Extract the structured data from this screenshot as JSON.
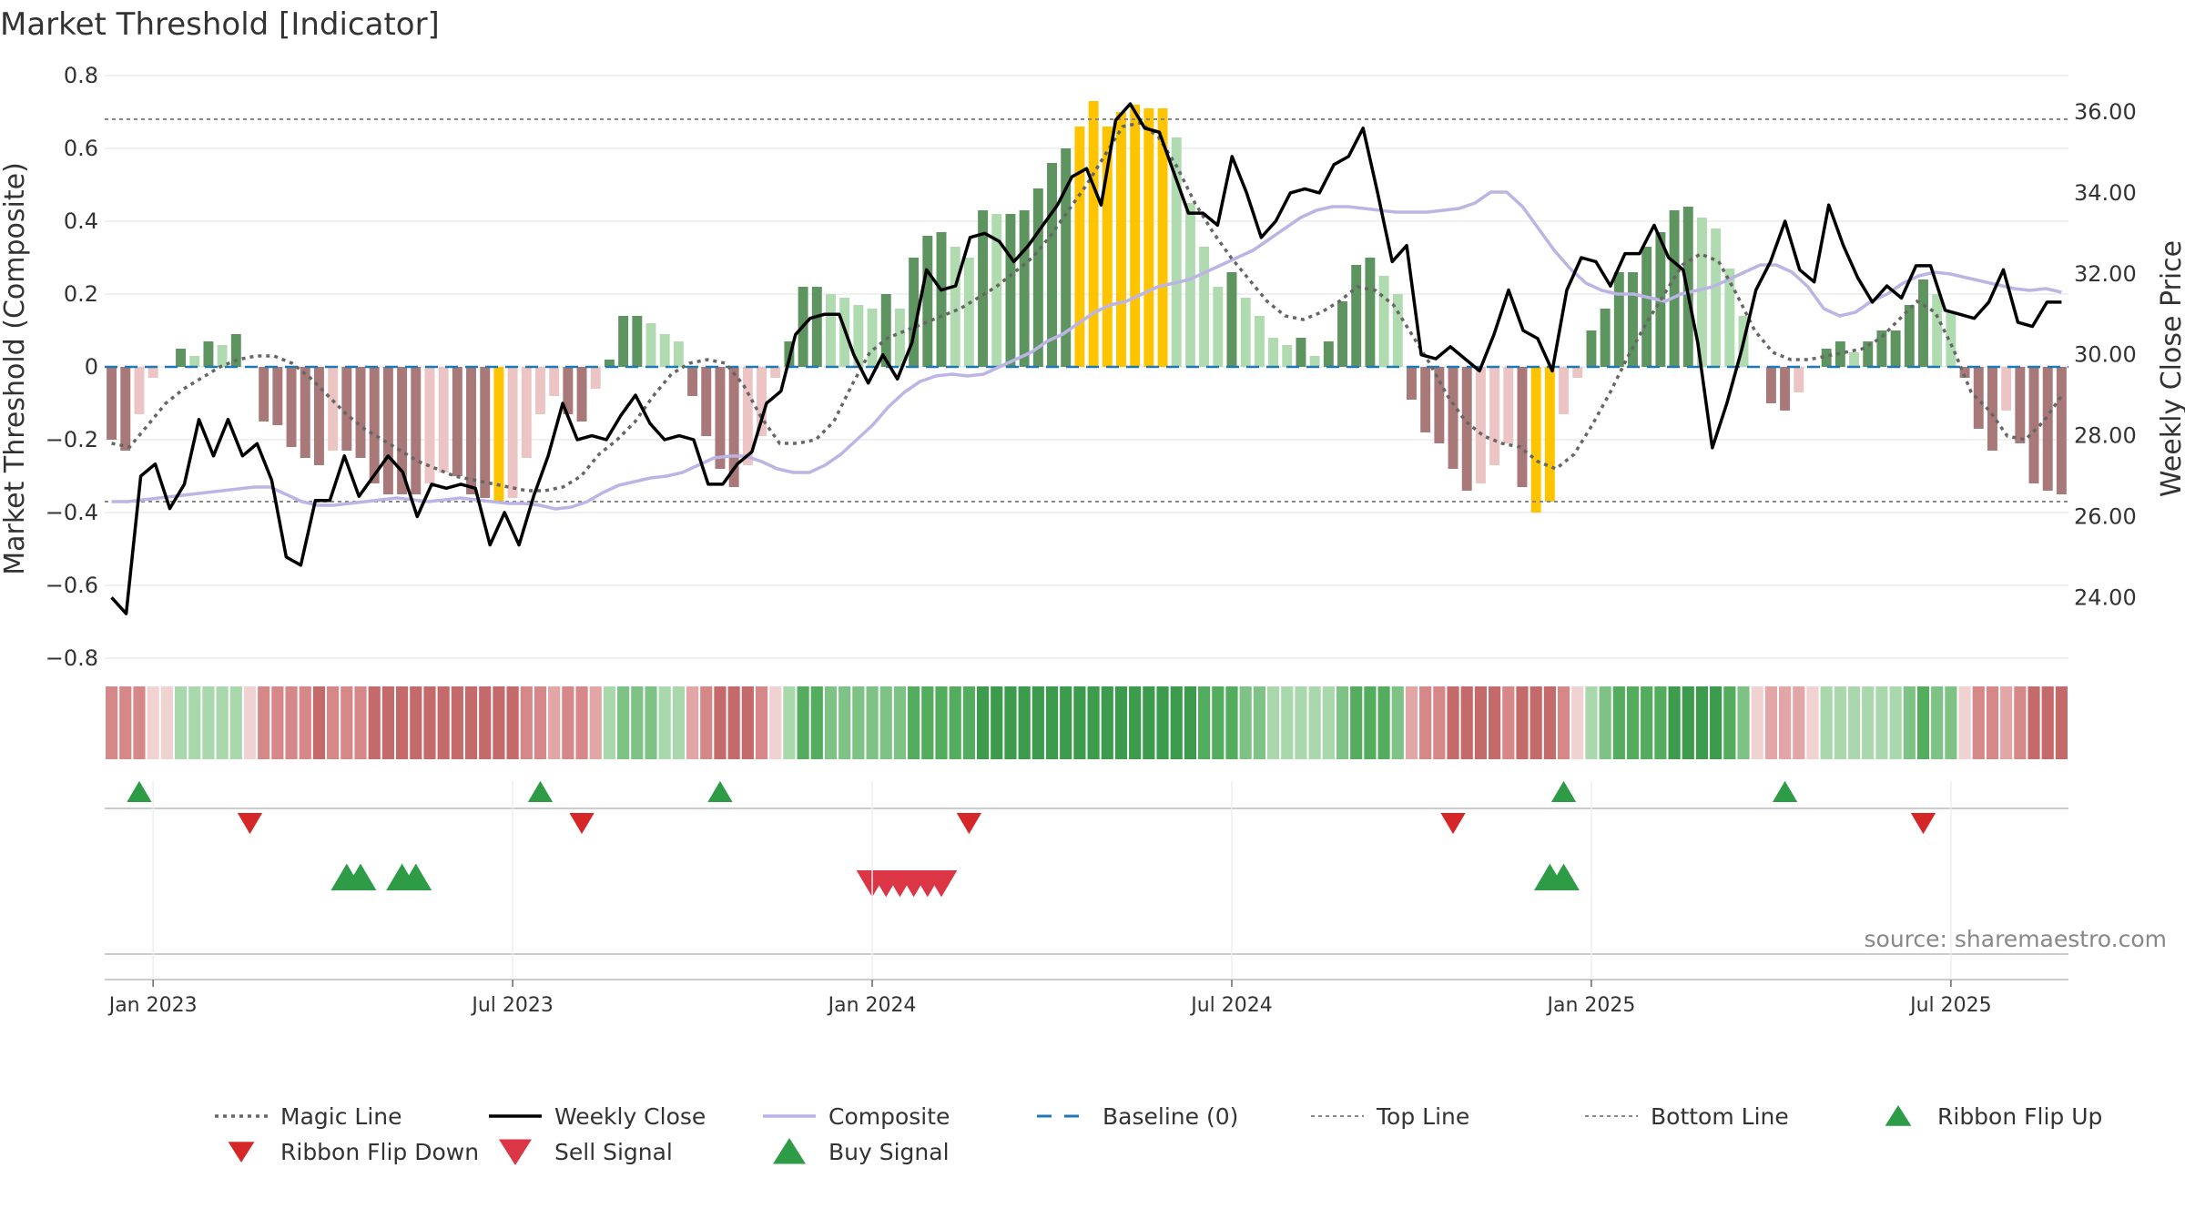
{
  "chart_data": {
    "type": "bar",
    "title": "Market Threshold [Indicator]",
    "source": "source: sharemaestro.com",
    "y_left": {
      "label": "Market Threshold (Composite)",
      "range": [
        -0.8,
        0.8
      ],
      "ticks": [
        {
          "v": 0.8,
          "label": "0.8"
        },
        {
          "v": 0.6,
          "label": "0.6"
        },
        {
          "v": 0.4,
          "label": "0.4"
        },
        {
          "v": 0.2,
          "label": "0.2"
        },
        {
          "v": 0,
          "label": "0"
        },
        {
          "v": -0.2,
          "label": "−0.2"
        },
        {
          "v": -0.4,
          "label": "−0.4"
        },
        {
          "v": -0.6,
          "label": "−0.6"
        },
        {
          "v": -0.8,
          "label": "−0.8"
        }
      ]
    },
    "y_right": {
      "label": "Weekly Close Price",
      "range": [
        22.5,
        36.9
      ],
      "ticks": [
        {
          "v": 36,
          "label": "36.00"
        },
        {
          "v": 34,
          "label": "34.00"
        },
        {
          "v": 32,
          "label": "32.00"
        },
        {
          "v": 30,
          "label": "30.00"
        },
        {
          "v": 28,
          "label": "28.00"
        },
        {
          "v": 26,
          "label": "26.00"
        },
        {
          "v": 24,
          "label": "24.00"
        }
      ]
    },
    "x_ticks": [
      {
        "w": 3,
        "label": "Jan 2023"
      },
      {
        "w": 29,
        "label": "Jul 2023"
      },
      {
        "w": 55,
        "label": "Jan 2024"
      },
      {
        "w": 81,
        "label": "Jul 2024"
      },
      {
        "w": 107,
        "label": "Jan 2025"
      },
      {
        "w": 133,
        "label": "Jul 2025"
      }
    ],
    "top_line": 0.68,
    "bottom_line": -0.37,
    "baseline": 0,
    "composite": [
      -0.37,
      -0.37,
      -0.365,
      -0.36,
      -0.355,
      -0.35,
      -0.345,
      -0.34,
      -0.335,
      -0.33,
      -0.33,
      -0.35,
      -0.37,
      -0.38,
      -0.38,
      -0.375,
      -0.37,
      -0.365,
      -0.36,
      -0.365,
      -0.37,
      -0.365,
      -0.36,
      -0.365,
      -0.37,
      -0.375,
      -0.375,
      -0.38,
      -0.39,
      -0.385,
      -0.37,
      -0.345,
      -0.325,
      -0.315,
      -0.305,
      -0.3,
      -0.29,
      -0.27,
      -0.25,
      -0.245,
      -0.245,
      -0.26,
      -0.28,
      -0.29,
      -0.29,
      -0.27,
      -0.24,
      -0.2,
      -0.16,
      -0.11,
      -0.07,
      -0.04,
      -0.025,
      -0.02,
      -0.025,
      -0.02,
      0.0,
      0.02,
      0.04,
      0.07,
      0.09,
      0.12,
      0.15,
      0.17,
      0.18,
      0.2,
      0.22,
      0.23,
      0.24,
      0.26,
      0.28,
      0.3,
      0.32,
      0.35,
      0.38,
      0.41,
      0.43,
      0.44,
      0.44,
      0.435,
      0.43,
      0.425,
      0.425,
      0.425,
      0.43,
      0.435,
      0.45,
      0.48,
      0.48,
      0.44,
      0.38,
      0.32,
      0.27,
      0.23,
      0.21,
      0.2,
      0.2,
      0.19,
      0.18,
      0.2,
      0.21,
      0.22,
      0.24,
      0.26,
      0.28,
      0.28,
      0.26,
      0.22,
      0.16,
      0.14,
      0.15,
      0.18,
      0.2,
      0.23,
      0.25,
      0.26,
      0.255,
      0.245,
      0.235,
      0.225,
      0.215,
      0.21,
      0.215,
      0.205
    ],
    "magic": [
      -0.21,
      -0.22,
      -0.16,
      -0.1,
      -0.06,
      -0.03,
      0.0,
      0.02,
      0.03,
      0.03,
      0.01,
      -0.03,
      -0.08,
      -0.13,
      -0.17,
      -0.2,
      -0.23,
      -0.26,
      -0.28,
      -0.3,
      -0.31,
      -0.32,
      -0.33,
      -0.34,
      -0.34,
      -0.33,
      -0.3,
      -0.24,
      -0.2,
      -0.15,
      -0.08,
      -0.02,
      0.01,
      0.02,
      0.01,
      -0.05,
      -0.14,
      -0.21,
      -0.21,
      -0.2,
      -0.15,
      -0.05,
      0.04,
      0.08,
      0.1,
      0.12,
      0.14,
      0.16,
      0.19,
      0.22,
      0.26,
      0.3,
      0.36,
      0.43,
      0.5,
      0.58,
      0.66,
      0.67,
      0.63,
      0.55,
      0.45,
      0.37,
      0.3,
      0.24,
      0.18,
      0.14,
      0.13,
      0.15,
      0.18,
      0.22,
      0.21,
      0.17,
      0.09,
      0.01,
      -0.08,
      -0.15,
      -0.19,
      -0.21,
      -0.22,
      -0.26,
      -0.28,
      -0.24,
      -0.16,
      -0.07,
      0.03,
      0.12,
      0.2,
      0.28,
      0.31,
      0.29,
      0.2,
      0.1,
      0.04,
      0.02,
      0.02,
      0.03,
      0.04,
      0.05,
      0.08,
      0.13,
      0.18,
      0.15,
      0.05,
      -0.07,
      -0.12,
      -0.19,
      -0.2,
      -0.15,
      -0.08
    ],
    "magic_start_week": 0,
    "weekly_close": [
      24.0,
      23.6,
      27.0,
      27.3,
      26.2,
      26.8,
      28.4,
      27.5,
      28.4,
      27.5,
      27.8,
      26.9,
      25.0,
      24.8,
      26.4,
      26.4,
      27.5,
      26.5,
      27.0,
      27.5,
      27.1,
      26.0,
      26.8,
      26.7,
      26.8,
      26.7,
      25.3,
      26.1,
      25.3,
      26.5,
      27.5,
      28.8,
      27.9,
      28.0,
      27.9,
      28.5,
      29.0,
      28.3,
      27.9,
      28.0,
      27.9,
      26.8,
      26.8,
      27.3,
      27.6,
      28.8,
      29.1,
      30.5,
      30.9,
      31.0,
      31.0,
      30.0,
      29.3,
      30.0,
      29.4,
      30.3,
      32.1,
      31.6,
      31.7,
      32.9,
      33.0,
      32.8,
      32.3,
      32.7,
      33.2,
      33.7,
      34.4,
      34.6,
      33.7,
      35.8,
      36.2,
      35.6,
      35.5,
      34.5,
      33.5,
      33.5,
      33.2,
      34.9,
      34.0,
      32.9,
      33.3,
      34.0,
      34.1,
      34.0,
      34.7,
      34.9,
      35.6,
      34.0,
      32.3,
      32.7,
      30.0,
      29.9,
      30.2,
      29.9,
      29.6,
      30.5,
      31.6,
      30.6,
      30.4,
      29.6,
      31.6,
      32.4,
      32.3,
      31.7,
      32.5,
      32.5,
      33.2,
      32.4,
      32.1,
      30.3,
      27.7,
      28.8,
      30.1,
      31.6,
      32.3,
      33.3,
      32.1,
      31.8,
      33.7,
      32.7,
      31.9,
      31.3,
      31.7,
      31.4,
      32.2,
      32.2,
      31.1,
      31.0,
      30.9,
      31.3,
      32.1,
      30.8,
      30.7,
      31.3,
      31.3
    ],
    "bars": [
      -0.2,
      -0.23,
      -0.13,
      -0.03,
      0.0,
      0.05,
      0.03,
      0.07,
      0.06,
      0.09,
      0.0,
      -0.15,
      -0.16,
      -0.22,
      -0.25,
      -0.27,
      -0.23,
      -0.23,
      -0.25,
      -0.32,
      -0.35,
      -0.35,
      -0.35,
      -0.32,
      -0.29,
      -0.3,
      -0.35,
      -0.36,
      -0.37,
      -0.36,
      -0.25,
      -0.13,
      -0.08,
      -0.13,
      -0.15,
      -0.06,
      0.02,
      0.14,
      0.14,
      0.12,
      0.09,
      0.07,
      -0.08,
      -0.19,
      -0.28,
      -0.33,
      -0.27,
      -0.19,
      -0.03,
      0.07,
      0.22,
      0.22,
      0.2,
      0.19,
      0.17,
      0.16,
      0.2,
      0.16,
      0.3,
      0.36,
      0.37,
      0.33,
      0.3,
      0.43,
      0.42,
      0.42,
      0.43,
      0.49,
      0.56,
      0.6,
      0.66,
      0.73,
      0.66,
      0.7,
      0.72,
      0.71,
      0.71,
      0.63,
      0.45,
      0.33,
      0.22,
      0.26,
      0.19,
      0.14,
      0.08,
      0.06,
      0.08,
      0.03,
      0.07,
      0.18,
      0.28,
      0.3,
      0.25,
      0.2,
      -0.09,
      -0.18,
      -0.21,
      -0.28,
      -0.34,
      -0.32,
      -0.27,
      -0.21,
      -0.33,
      -0.4,
      -0.37,
      -0.13,
      -0.03,
      0.1,
      0.16,
      0.26,
      0.26,
      0.33,
      0.37,
      0.43,
      0.44,
      0.41,
      0.38,
      0.27,
      0.14,
      0.0,
      -0.1,
      -0.12,
      -0.07,
      0.0,
      0.05,
      0.07,
      0.04,
      0.07,
      0.1,
      0.1,
      0.17,
      0.24,
      0.2,
      0.15,
      -0.03,
      -0.17,
      -0.23,
      -0.12,
      -0.21,
      -0.32,
      -0.34,
      -0.35
    ],
    "bar_colors": {
      "pos_dark": "#5e9460",
      "pos_light": "#b0dbb0",
      "neg_dark": "#a97878",
      "neg_light": "#ecc4c4",
      "extreme": "#ffc400"
    },
    "ribbon_colors": [
      "#f0d2d2",
      "#e3a6a6",
      "#d68888",
      "#c46a6a",
      "#a8d8ab",
      "#7fc286",
      "#54ac5f",
      "#3d9b4d"
    ],
    "ribbon_flip_up": [
      2,
      31,
      44,
      105,
      121
    ],
    "ribbon_flip_down": [
      10,
      34,
      62,
      97,
      131
    ],
    "buy_signal": [
      17,
      18,
      21,
      22,
      104,
      105
    ],
    "sell_signal": [
      55,
      56,
      57,
      58,
      59,
      60
    ],
    "legend": [
      {
        "name": "Magic Line",
        "symbol": "dotted",
        "color": "#666666"
      },
      {
        "name": "Weekly Close",
        "symbol": "solid",
        "color": "#000000"
      },
      {
        "name": "Composite",
        "symbol": "solid",
        "color": "#bdb4e6"
      },
      {
        "name": "Baseline (0)",
        "symbol": "dashed",
        "color": "#1f77b4"
      },
      {
        "name": "Top Line",
        "symbol": "dotted-thin",
        "color": "#888888"
      },
      {
        "name": "Bottom Line",
        "symbol": "dotted-thin",
        "color": "#888888"
      },
      {
        "name": "Ribbon Flip Up",
        "symbol": "tri-up-small",
        "color": "#2e9b47"
      },
      {
        "name": "Ribbon Flip Down",
        "symbol": "tri-down-small",
        "color": "#d62728"
      },
      {
        "name": "Sell Signal",
        "symbol": "tri-down",
        "color": "#dc3545"
      },
      {
        "name": "Buy Signal",
        "symbol": "tri-up",
        "color": "#2e9b47"
      }
    ]
  }
}
